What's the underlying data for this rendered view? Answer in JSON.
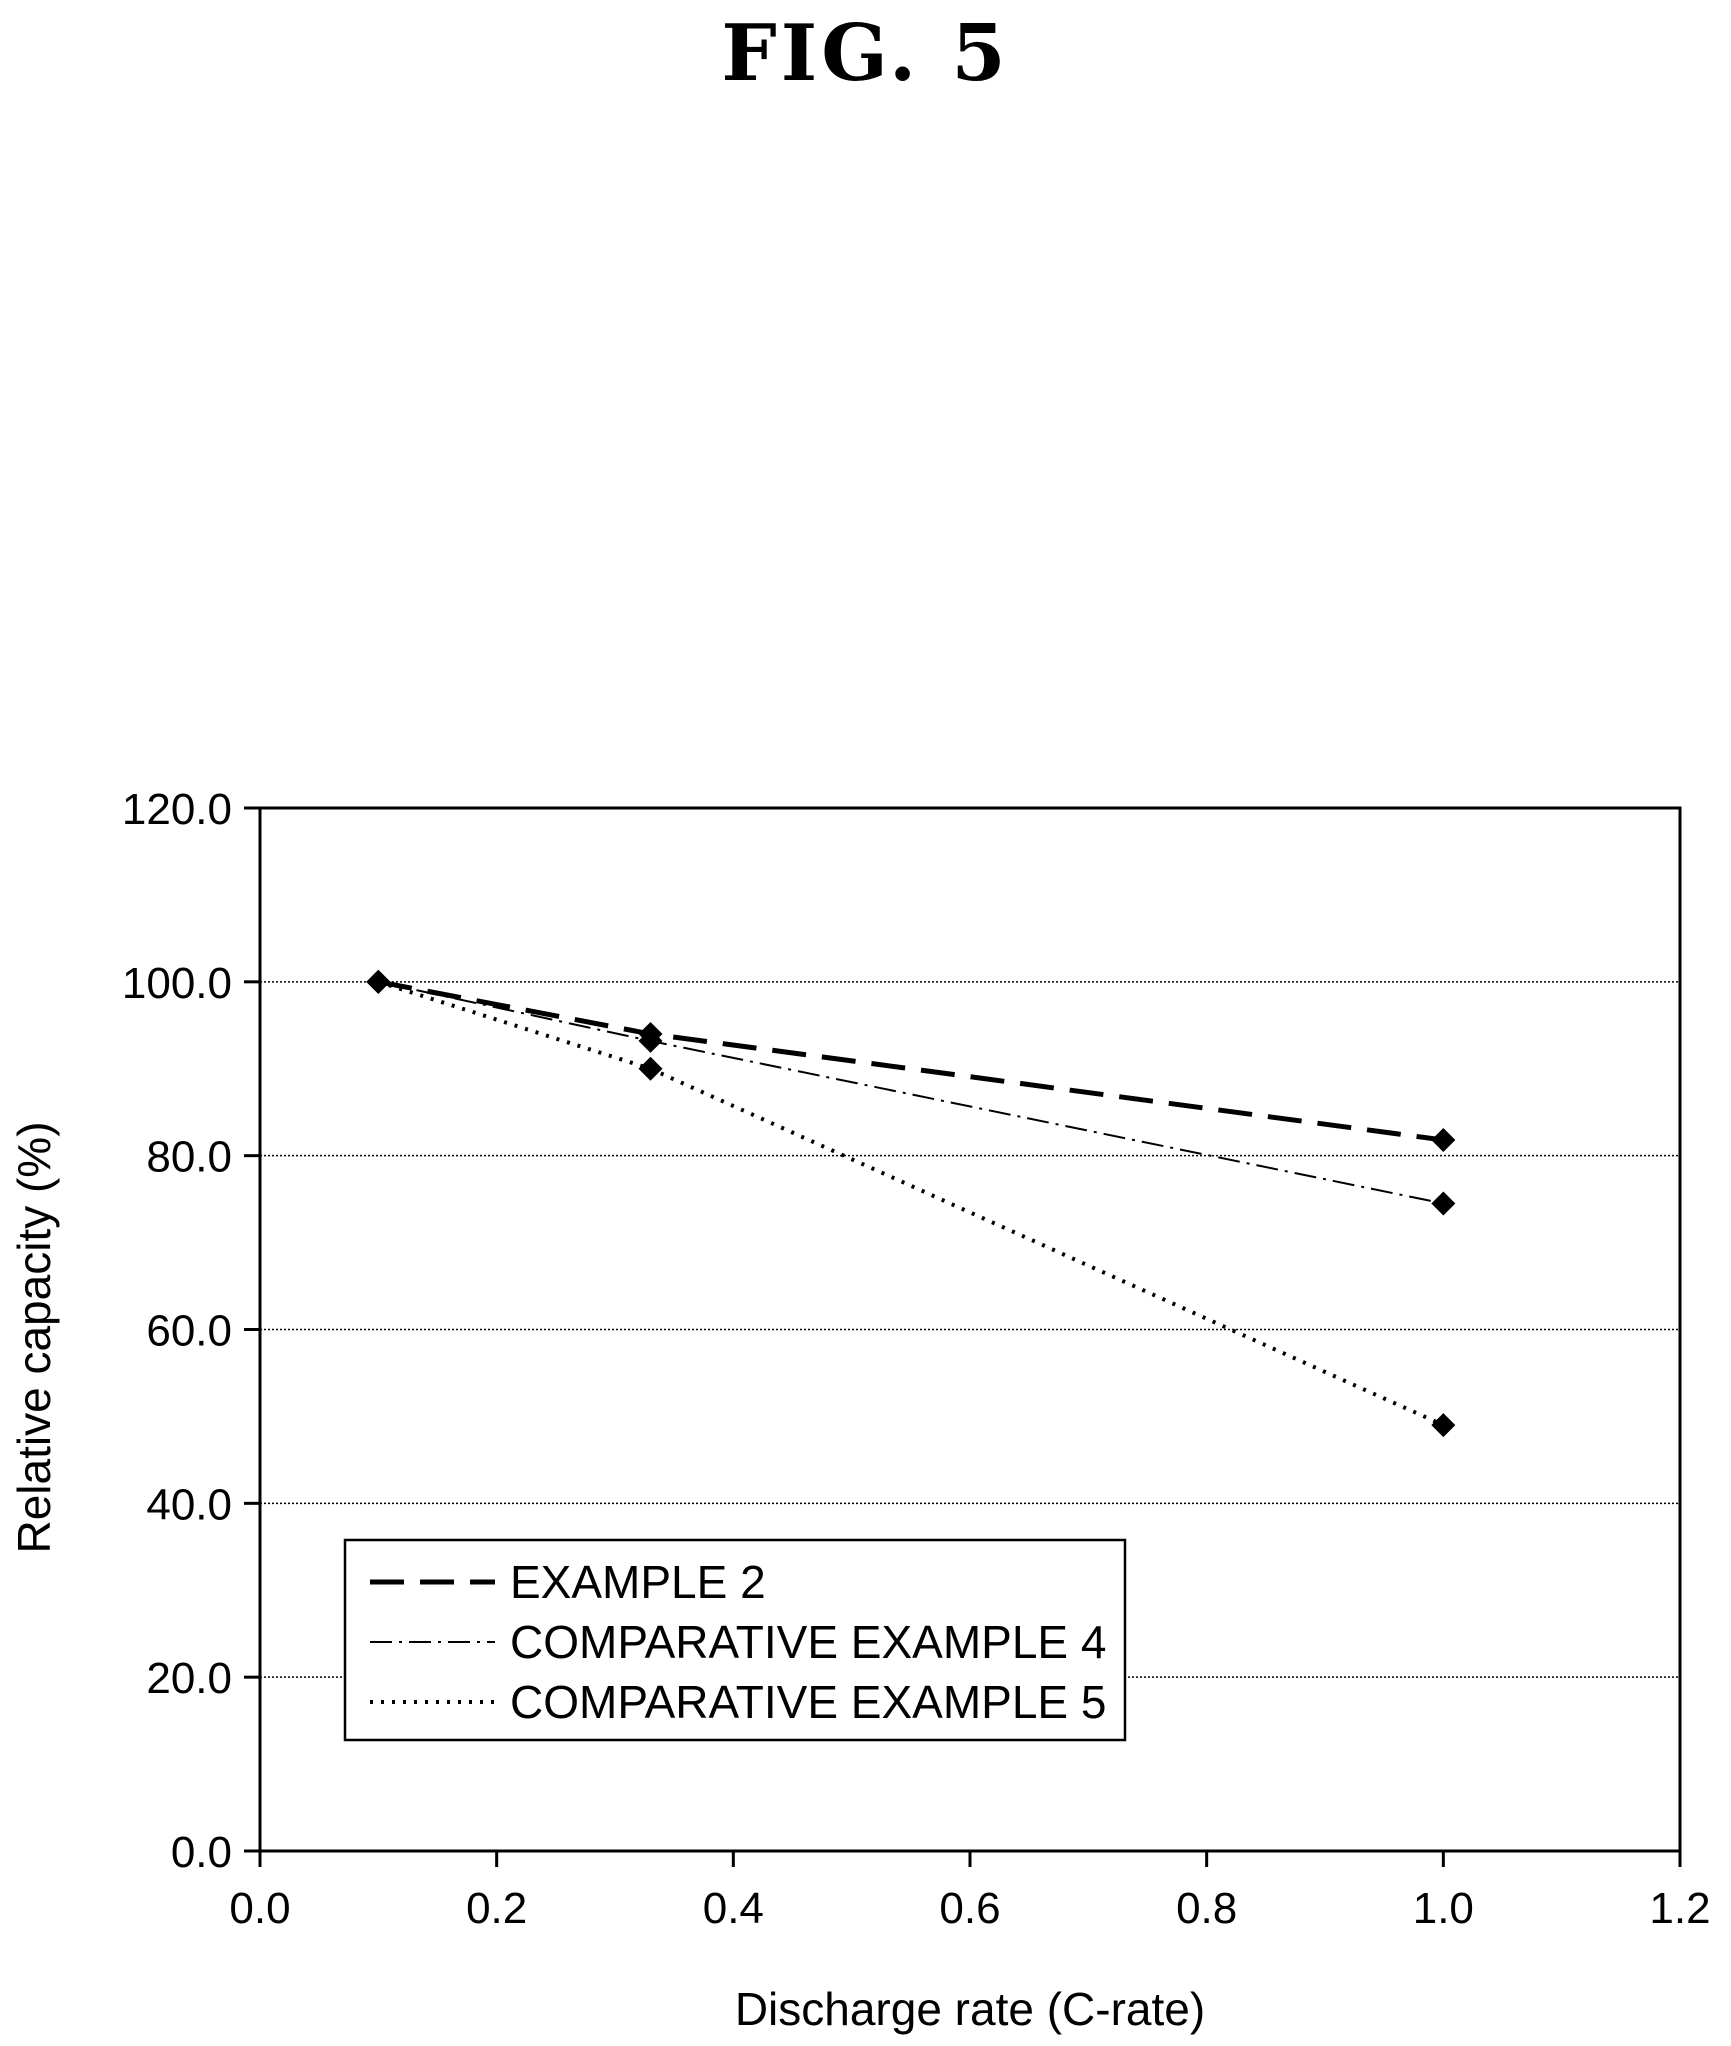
{
  "figure_title": "FIG. 5",
  "chart_data": {
    "type": "line",
    "title": "",
    "xlabel": "Discharge rate (C-rate)",
    "ylabel": "Relative capacity (%)",
    "xlim": [
      0.0,
      1.2
    ],
    "ylim": [
      0.0,
      120.0
    ],
    "x_ticks": [
      "0.0",
      "0.2",
      "0.4",
      "0.6",
      "0.8",
      "1.0",
      "1.2"
    ],
    "y_ticks": [
      "0.0",
      "20.0",
      "40.0",
      "60.0",
      "80.0",
      "100.0",
      "120.0"
    ],
    "grid": "horizontal dotted",
    "legend_position": "bottom-left",
    "marker": "diamond",
    "series": [
      {
        "name": "EXAMPLE 2",
        "style": "dashed",
        "x": [
          0.1,
          0.33,
          1.0
        ],
        "y": [
          100.0,
          94.0,
          81.8
        ]
      },
      {
        "name": "COMPARATIVE EXAMPLE 4",
        "style": "dash-dot",
        "x": [
          0.1,
          0.33,
          1.0
        ],
        "y": [
          100.0,
          93.2,
          74.5
        ]
      },
      {
        "name": "COMPARATIVE EXAMPLE 5",
        "style": "dotted",
        "x": [
          0.1,
          0.33,
          1.0
        ],
        "y": [
          100.0,
          90.0,
          49.0
        ]
      }
    ]
  }
}
